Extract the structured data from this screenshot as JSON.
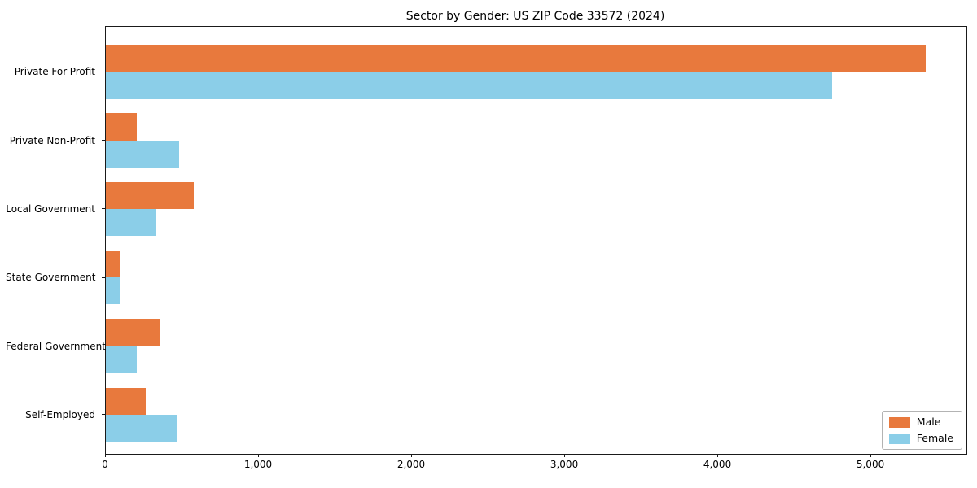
{
  "chart_data": {
    "type": "bar",
    "orientation": "horizontal",
    "title": "Sector by Gender: US ZIP Code 33572 (2024)",
    "xlabel": "",
    "ylabel": "",
    "categories": [
      "Private For-Profit",
      "Private Non-Profit",
      "Local Government",
      "State Government",
      "Federal Government",
      "Self-Employed"
    ],
    "series": [
      {
        "name": "Male",
        "color": "#E8793D",
        "values": [
          5355,
          200,
          573,
          97,
          355,
          262
        ]
      },
      {
        "name": "Female",
        "color": "#8BCEE8",
        "values": [
          4745,
          478,
          325,
          92,
          203,
          470
        ]
      }
    ],
    "xlim": [
      0,
      5622
    ],
    "xticks": [
      0,
      1000,
      2000,
      3000,
      4000,
      5000
    ],
    "xtick_labels": [
      "0",
      "1,000",
      "2,000",
      "3,000",
      "4,000",
      "5,000"
    ],
    "legend_position": "lower right",
    "grid": false
  }
}
